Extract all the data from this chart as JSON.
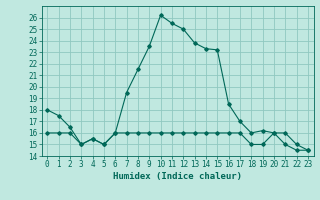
{
  "xlabel": "Humidex (Indice chaleur)",
  "ylabel": "",
  "background_color": "#c0e8e0",
  "grid_color": "#90c8c0",
  "line_color": "#006858",
  "xlim": [
    -0.5,
    23.5
  ],
  "ylim": [
    14,
    27
  ],
  "yticks": [
    14,
    15,
    16,
    17,
    18,
    19,
    20,
    21,
    22,
    23,
    24,
    25,
    26
  ],
  "xticks": [
    0,
    1,
    2,
    3,
    4,
    5,
    6,
    7,
    8,
    9,
    10,
    11,
    12,
    13,
    14,
    15,
    16,
    17,
    18,
    19,
    20,
    21,
    22,
    23
  ],
  "series1_x": [
    0,
    1,
    2,
    3,
    4,
    5,
    6,
    7,
    8,
    9,
    10,
    11,
    12,
    13,
    14,
    15,
    16,
    17,
    18,
    19,
    20,
    21,
    22,
    23
  ],
  "series1_y": [
    18,
    17.5,
    16.5,
    15,
    15.5,
    15,
    16,
    19.5,
    21.5,
    23.5,
    26.2,
    25.5,
    25,
    23.8,
    23.3,
    23.2,
    18.5,
    17,
    16,
    16.2,
    16,
    15,
    14.5,
    14.5
  ],
  "series2_x": [
    0,
    1,
    2,
    3,
    4,
    5,
    6,
    7,
    8,
    9,
    10,
    11,
    12,
    13,
    14,
    15,
    16,
    17,
    18,
    19,
    20,
    21,
    22,
    23
  ],
  "series2_y": [
    16,
    16,
    16,
    15,
    15.5,
    15,
    16,
    16,
    16,
    16,
    16,
    16,
    16,
    16,
    16,
    16,
    16,
    16,
    15,
    15,
    16,
    16,
    15,
    14.5
  ]
}
